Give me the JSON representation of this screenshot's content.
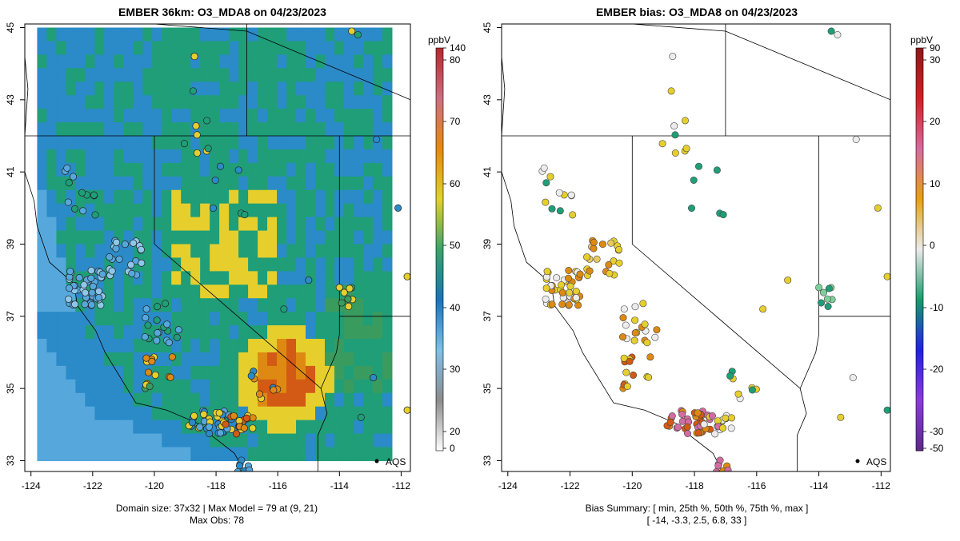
{
  "colors": {
    "ocean_light": "#56a8dc",
    "ocean_dark": "#2b8bc8",
    "land_green": "#1f9e78",
    "land_mid": "#3a9b5f",
    "yellow": "#e6cf2d",
    "orange": "#de8a12",
    "red_orange": "#d25a14",
    "boundary": "#000000"
  },
  "left_panel": {
    "title": "EMBER 36km: O3_MDA8 on 04/23/2023",
    "caption_line1": "Domain size: 37x32 | Max Model = 79 at (9, 21)",
    "caption_line2": "Max Obs: 78",
    "site_label": "AQS",
    "colorbar": {
      "unit": "ppbV",
      "tick_labels": [
        "140",
        "80",
        "70",
        "60",
        "50",
        "40",
        "30",
        "20",
        "0"
      ],
      "stops": [
        {
          "value": 0,
          "color": "#ffffff"
        },
        {
          "value": 20,
          "color": "#8c8c8c"
        },
        {
          "value": 25,
          "color": "#7fc0ea"
        },
        {
          "value": 40,
          "color": "#1a72b5"
        },
        {
          "value": 50,
          "color": "#3aa36a"
        },
        {
          "value": 60,
          "color": "#e3d02f"
        },
        {
          "value": 70,
          "color": "#e28a12"
        },
        {
          "value": 80,
          "color": "#c97080"
        },
        {
          "value": 140,
          "color": "#b22a2e"
        }
      ]
    }
  },
  "right_panel": {
    "title": "EMBER bias: O3_MDA8 on 04/23/2023",
    "caption_line1": "Bias Summary: [ min, 25th %, 50th %, 75th %, max ]",
    "caption_line2": "[ -14,   -3.3,   2.5,   6.8,   33 ]",
    "site_label": "AQS",
    "colorbar": {
      "unit": "ppbV",
      "tick_labels": [
        "90",
        "30",
        "20",
        "10",
        "0",
        "-10",
        "-20",
        "-30",
        "-50"
      ],
      "stops": [
        {
          "value": -50,
          "color": "#5b2a86"
        },
        {
          "value": -30,
          "color": "#8f3ad6"
        },
        {
          "value": -20,
          "color": "#2020e6"
        },
        {
          "value": -10,
          "color": "#1a9a6a"
        },
        {
          "value": 0,
          "color": "#ececec"
        },
        {
          "value": 10,
          "color": "#e6a014"
        },
        {
          "value": 20,
          "color": "#d36ca0"
        },
        {
          "value": 30,
          "color": "#d22020"
        },
        {
          "value": 90,
          "color": "#8b1a1a"
        }
      ]
    }
  },
  "chart_data": [
    {
      "type": "heatmap",
      "title": "EMBER 36km: O3_MDA8 on 04/23/2023",
      "xlabel": "",
      "ylabel": "",
      "x_ticks": [
        "-124",
        "-122",
        "-120",
        "-118",
        "-116",
        "-114",
        "-112"
      ],
      "y_ticks": [
        "33",
        "35",
        "37",
        "39",
        "41",
        "43",
        "45"
      ],
      "xlim": [
        -124.2,
        -111.7
      ],
      "ylim": [
        32.7,
        45.1
      ],
      "domain_lon": [
        -123.8,
        -112.3
      ],
      "domain_lat": [
        33.0,
        45.0
      ],
      "grid_size": [
        37,
        32
      ],
      "colorbar_unit": "ppbV",
      "max_model": 79,
      "max_model_cell": [
        9,
        21
      ],
      "max_obs": 78,
      "reference_site": {
        "label": "AQS",
        "lon": -112.8,
        "lat": 33.0
      }
    },
    {
      "type": "scatter",
      "title": "EMBER bias: O3_MDA8 on 04/23/2023",
      "xlabel": "",
      "ylabel": "",
      "x_ticks": [
        "-124",
        "-122",
        "-120",
        "-118",
        "-116",
        "-114",
        "-112"
      ],
      "y_ticks": [
        "33",
        "35",
        "37",
        "39",
        "41",
        "43",
        "45"
      ],
      "xlim": [
        -124.2,
        -111.7
      ],
      "ylim": [
        32.7,
        45.1
      ],
      "colorbar_unit": "ppbV",
      "bias_summary": {
        "min": -14,
        "p25": -3.3,
        "p50": 2.5,
        "p75": 6.8,
        "max": 33
      },
      "reference_site": {
        "label": "AQS",
        "lon": -112.8,
        "lat": 33.0
      }
    }
  ]
}
